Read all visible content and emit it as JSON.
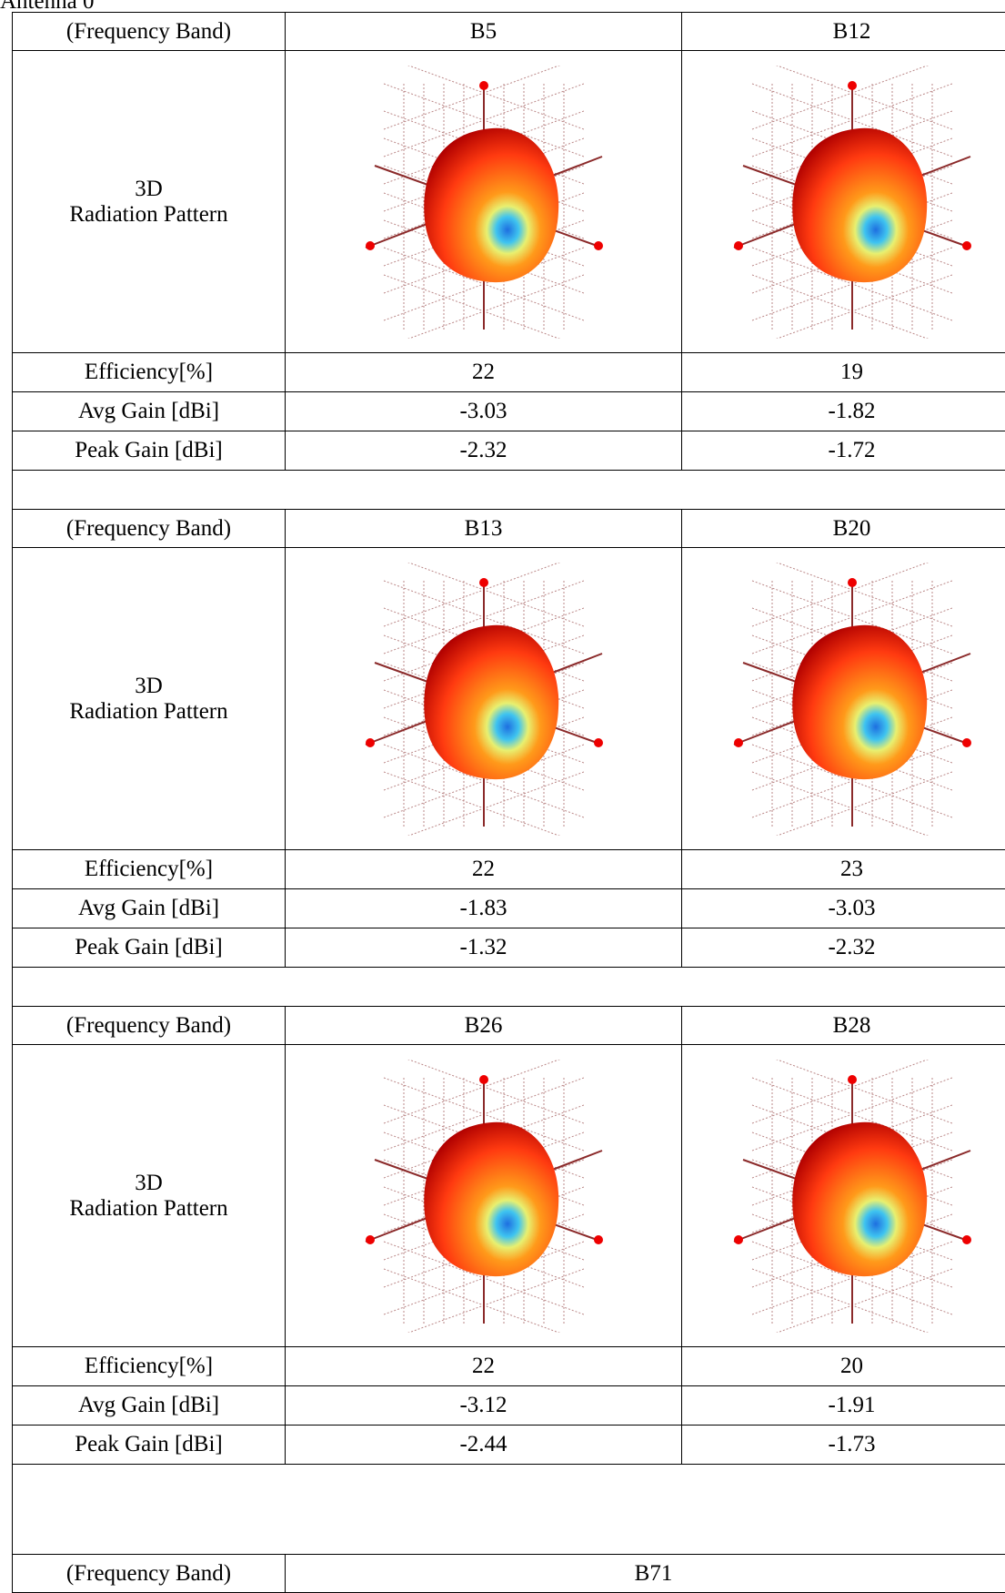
{
  "title": "Antenna 0",
  "row_labels": {
    "band": "(Frequency Band)",
    "pattern": "3D\nRadiation Pattern",
    "efficiency": "Efficiency[%]",
    "avg_gain": "Avg Gain [dBi]",
    "peak_gain": "Peak Gain [dBi]"
  },
  "groups": [
    {
      "bands": [
        "B5",
        "B12"
      ],
      "efficiency": [
        22,
        19
      ],
      "avg_gain": [
        -3.03,
        -1.82
      ],
      "peak_gain": [
        -2.32,
        -1.72
      ]
    },
    {
      "bands": [
        "B13",
        "B20"
      ],
      "efficiency": [
        22,
        23
      ],
      "avg_gain": [
        -1.83,
        -3.03
      ],
      "peak_gain": [
        -1.32,
        -2.32
      ]
    },
    {
      "bands": [
        "B26",
        "B28"
      ],
      "efficiency": [
        22,
        20
      ],
      "avg_gain": [
        -3.12,
        -1.91
      ],
      "peak_gain": [
        -2.44,
        -1.73
      ]
    },
    {
      "bands": [
        "B71"
      ]
    }
  ]
}
